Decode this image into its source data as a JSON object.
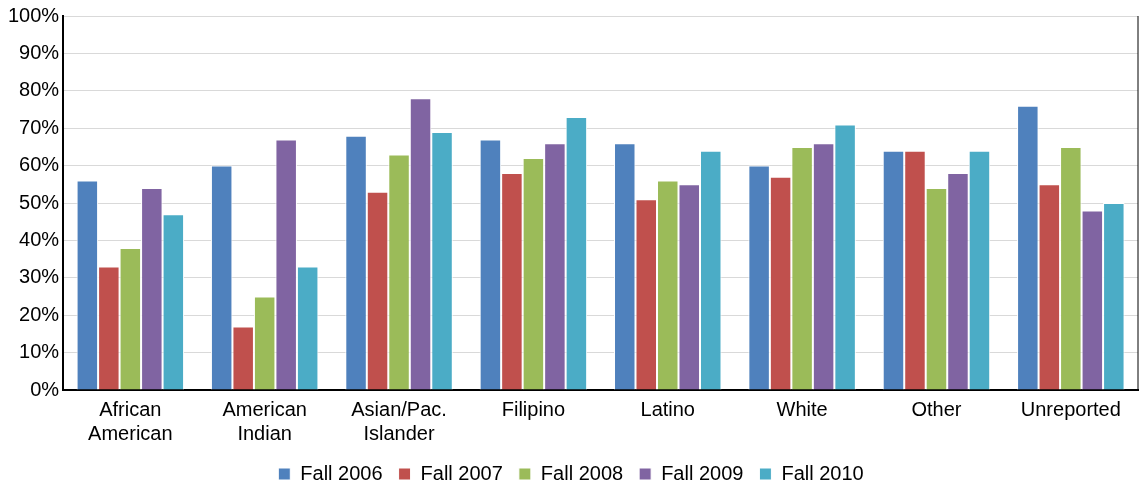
{
  "chart_data": {
    "type": "bar",
    "categories": [
      "African American",
      "American Indian",
      "Asian/Pac. Islander",
      "Filipino",
      "Latino",
      "White",
      "Other",
      "Unreported"
    ],
    "series": [
      {
        "name": "Fall 2006",
        "color": "#4f81bd",
        "values": [
          56,
          60,
          68,
          67,
          66,
          60,
          64,
          76
        ]
      },
      {
        "name": "Fall 2007",
        "color": "#c0504d",
        "values": [
          33,
          17,
          53,
          58,
          51,
          57,
          64,
          55
        ]
      },
      {
        "name": "Fall 2008",
        "color": "#9bbb59",
        "values": [
          38,
          25,
          63,
          62,
          56,
          65,
          54,
          65
        ]
      },
      {
        "name": "Fall 2009",
        "color": "#8064a2",
        "values": [
          54,
          67,
          78,
          66,
          55,
          66,
          58,
          48
        ]
      },
      {
        "name": "Fall 2010",
        "color": "#4bacc6",
        "values": [
          47,
          33,
          69,
          73,
          64,
          71,
          64,
          50
        ]
      }
    ],
    "ylim": [
      0,
      100
    ],
    "yticks": [
      {
        "value": 0,
        "label": "0%"
      },
      {
        "value": 10,
        "label": "10%"
      },
      {
        "value": 20,
        "label": "20%"
      },
      {
        "value": 30,
        "label": "30%"
      },
      {
        "value": 40,
        "label": "40%"
      },
      {
        "value": 50,
        "label": "50%"
      },
      {
        "value": 60,
        "label": "60%"
      },
      {
        "value": 70,
        "label": "70%"
      },
      {
        "value": 80,
        "label": "80%"
      },
      {
        "value": 90,
        "label": "90%"
      },
      {
        "value": 100,
        "label": "100%"
      }
    ],
    "grid": "y",
    "legend": "bottom"
  }
}
